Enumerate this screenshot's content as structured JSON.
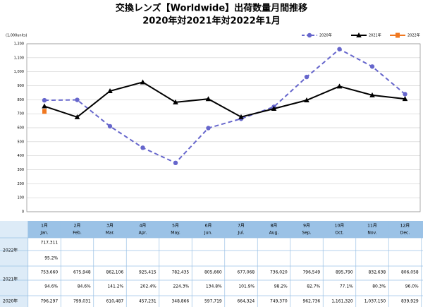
{
  "chart_data": {
    "type": "line",
    "title": "交換レンズ【Worldwide】出荷数量月間推移",
    "subtitle": "2020年対2021年対2022年1月",
    "y_label": "(1,000units)",
    "categories": [
      "1月",
      "2月",
      "3月",
      "4月",
      "5月",
      "6月",
      "7月",
      "8月",
      "9月",
      "10月",
      "11月",
      "12月"
    ],
    "categories_en": [
      "Jan.",
      "Feb.",
      "Mar.",
      "Apr.",
      "May.",
      "Jun.",
      "Jul.",
      "Aug.",
      "Sep.",
      "Oct.",
      "Nov.",
      "Dec."
    ],
    "ylim": [
      0,
      1200
    ],
    "yticks": [
      0,
      100,
      200,
      300,
      400,
      500,
      600,
      700,
      800,
      900,
      {
        "value": 1000,
        "label": "1,000"
      },
      {
        "value": 1100,
        "label": "1,100"
      },
      {
        "value": 1200,
        "label": "1,200"
      }
    ],
    "grid": true,
    "series": [
      {
        "name": "2020年",
        "color": "#6666cc",
        "dashed": true,
        "marker": "circle",
        "values": [
          796.297,
          799.031,
          610.487,
          457.231,
          348.866,
          597.719,
          664.324,
          749.37,
          962.736,
          1161.32,
          1037.15,
          839.929
        ],
        "value_labels": [
          "796,297",
          "799,031",
          "610,487",
          "457,231",
          "348,866",
          "597,719",
          "664,324",
          "749,370",
          "962,736",
          "1,161,320",
          "1,037,150",
          "839,929"
        ]
      },
      {
        "name": "2021年",
        "color": "#000000",
        "dashed": false,
        "marker": "triangle",
        "values": [
          753.66,
          675.948,
          862.106,
          925.415,
          782.435,
          805.66,
          677.068,
          736.02,
          796.549,
          895.79,
          832.638,
          806.058
        ],
        "value_labels": [
          "753,660",
          "675,948",
          "862,106",
          "925,415",
          "782,435",
          "805,660",
          "677,068",
          "736,020",
          "796,549",
          "895,790",
          "832,638",
          "806,058"
        ],
        "ratios": [
          "94.6%",
          "84.6%",
          "141.2%",
          "202.4%",
          "224.3%",
          "134.8%",
          "101.9%",
          "98.2%",
          "82.7%",
          "77.1%",
          "80.3%",
          "96.0%"
        ]
      },
      {
        "name": "2022年",
        "color": "#f07820",
        "dashed": false,
        "marker": "square",
        "values": [
          717.311,
          null,
          null,
          null,
          null,
          null,
          null,
          null,
          null,
          null,
          null,
          null
        ],
        "value_labels": [
          "717,311",
          null,
          null,
          null,
          null,
          null,
          null,
          null,
          null,
          null,
          null,
          null
        ],
        "ratios": [
          "95.2%",
          null,
          null,
          null,
          null,
          null,
          null,
          null,
          null,
          null,
          null,
          null
        ]
      }
    ]
  }
}
